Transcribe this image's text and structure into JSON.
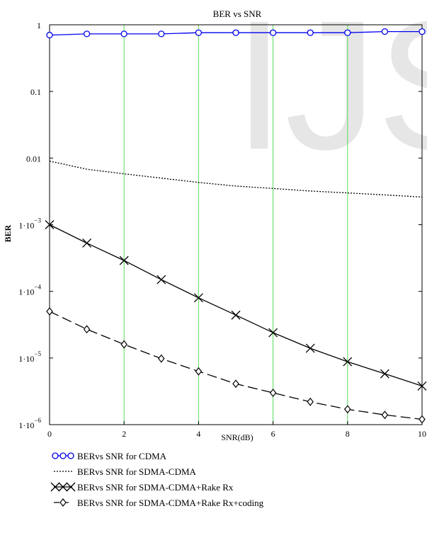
{
  "chart_data": {
    "type": "line",
    "title": "BER vs SNR",
    "xlabel": "SNR(dB)",
    "ylabel": "BER",
    "xlim": [
      0,
      10
    ],
    "ylim": [
      1e-06,
      1
    ],
    "yscale": "log",
    "x_ticks": [
      "0",
      "2",
      "4",
      "6",
      "8",
      "10"
    ],
    "y_ticks": [
      {
        "value": 1,
        "label": "1",
        "exp": ""
      },
      {
        "value": 0.1,
        "label": "0.1",
        "exp": ""
      },
      {
        "value": 0.01,
        "label": "0.01",
        "exp": ""
      },
      {
        "value": 0.001,
        "label": "1·10",
        "exp": "−3"
      },
      {
        "value": 0.0001,
        "label": "1·10",
        "exp": "−4"
      },
      {
        "value": 1e-05,
        "label": "1·10",
        "exp": "−5"
      },
      {
        "value": 1e-06,
        "label": "1·10",
        "exp": "−6"
      }
    ],
    "vertical_grid_x": [
      2,
      4,
      6,
      8
    ],
    "grid_color": "#55dd55",
    "legend_position": "bottom",
    "x": [
      0,
      1,
      2,
      3,
      4,
      5,
      6,
      7,
      8,
      9,
      10
    ],
    "series": [
      {
        "name": "BERvs SNR for CDMA",
        "color": "#0000ee",
        "line": "solid",
        "marker": "circle",
        "values": [
          0.7,
          0.73,
          0.73,
          0.73,
          0.76,
          0.76,
          0.76,
          0.76,
          0.76,
          0.79,
          0.79
        ]
      },
      {
        "name": "BERvs SNR for SDMA-CDMA",
        "color": "#000000",
        "line": "dotted",
        "marker": "none",
        "values": [
          0.009,
          0.0068,
          0.0058,
          0.005,
          0.0043,
          0.0038,
          0.0035,
          0.0032,
          0.003,
          0.0028,
          0.0026
        ]
      },
      {
        "name": "BERvs SNR for SDMA-CDMA+Rake Rx",
        "color": "#000000",
        "line": "solid",
        "marker": "x",
        "values": [
          0.001,
          0.00053,
          0.00029,
          0.00015,
          8e-05,
          4.4e-05,
          2.4e-05,
          1.4e-05,
          8.8e-06,
          5.8e-06,
          3.8e-06
        ]
      },
      {
        "name": "BERvs SNR for SDMA-CDMA+Rake Rx+coding",
        "color": "#000000",
        "line": "dashed",
        "marker": "diamond",
        "values": [
          5e-05,
          2.7e-05,
          1.6e-05,
          9.8e-06,
          6.3e-06,
          4.1e-06,
          3e-06,
          2.2e-06,
          1.7e-06,
          1.4e-06,
          1.2e-06
        ]
      }
    ]
  }
}
